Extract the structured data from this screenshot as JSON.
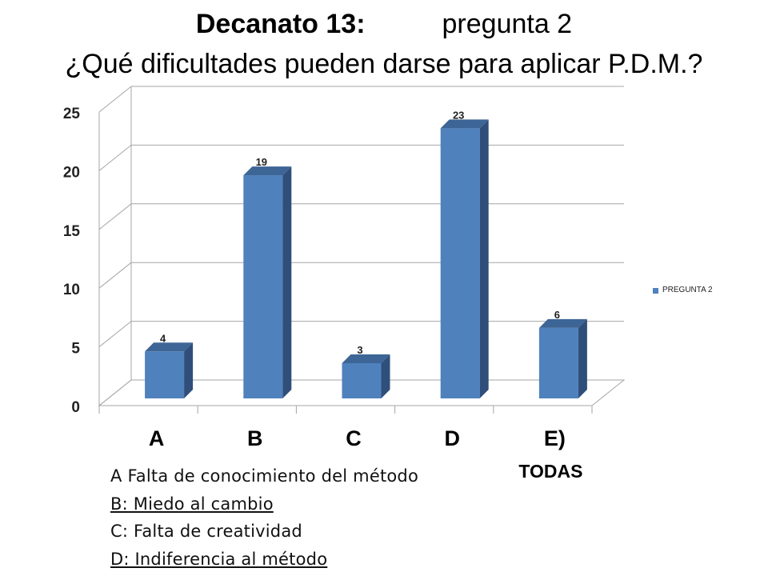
{
  "header": {
    "strong": "Decanato 13:",
    "rest": "pregunta 2",
    "question": "¿Qué dificultades pueden darse para aplicar P.D.M.?"
  },
  "chart_data": {
    "type": "bar",
    "categories": [
      "A",
      "B",
      "C",
      "D",
      "E)\nTODAS"
    ],
    "series": [
      {
        "name": "PREGUNTA 2",
        "values": [
          4,
          19,
          3,
          23,
          6
        ]
      }
    ],
    "ylim": [
      0,
      25
    ],
    "yticks": [
      0,
      5,
      10,
      15,
      20,
      25
    ],
    "grid": true,
    "legend": "right",
    "style": "3d-column",
    "colors": {
      "front": "#4f81bd",
      "side": "#2f4f7a",
      "top": "#3d6596"
    }
  },
  "notes": [
    "A Falta de conocimiento del método",
    "B: Miedo al cambio",
    "C: Falta de creatividad",
    "D: Indiferencia al método"
  ]
}
